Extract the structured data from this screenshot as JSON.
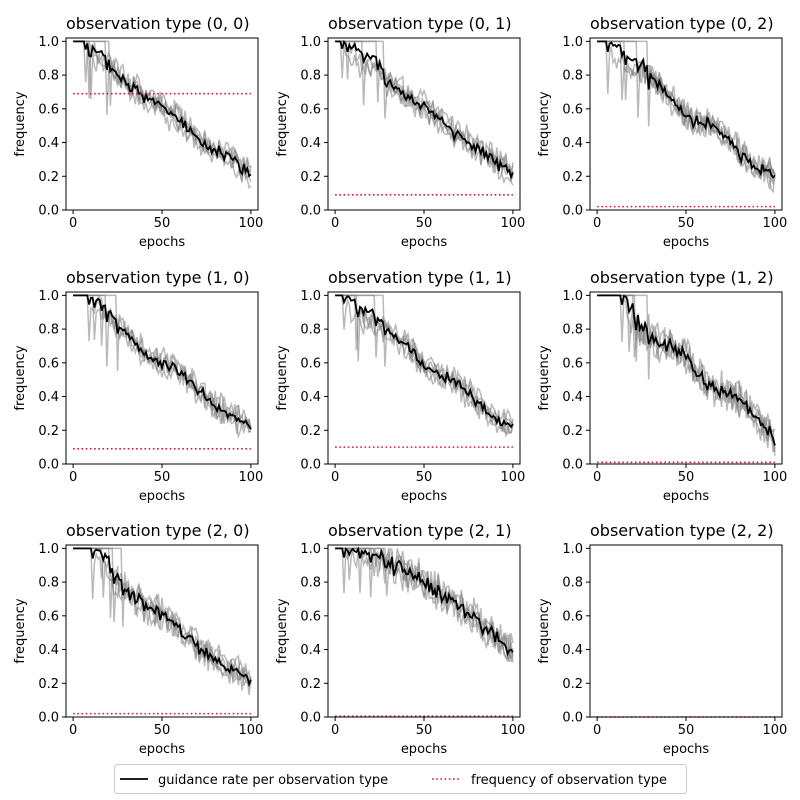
{
  "chart_data": {
    "type": "line",
    "xlabel": "epochs",
    "ylabel": "frequency",
    "xlim": [
      -4,
      104
    ],
    "ylim": [
      0,
      1.02
    ],
    "xticks": [
      "0",
      "50",
      "100"
    ],
    "yticks": [
      "0.0",
      "0.2",
      "0.4",
      "0.6",
      "0.8",
      "1.0"
    ],
    "legend": {
      "placement": "bottom-center",
      "entries": [
        "guidance rate per observation type",
        "frequency of observation type"
      ]
    },
    "colors": {
      "mean": "#000000",
      "runs": "#7f7f7f",
      "frequency": "#dc143c"
    },
    "panels": [
      {
        "title": "observation type (0, 0)",
        "empty": false,
        "frequency": 0.69,
        "start": 1.0,
        "end": 0.2,
        "shape": 1.0,
        "drop": 14,
        "noise": 0.05,
        "wave": 0.03,
        "seed": 1
      },
      {
        "title": "observation type (0, 1)",
        "empty": false,
        "frequency": 0.09,
        "start": 1.0,
        "end": 0.21,
        "shape": 1.0,
        "drop": 14,
        "noise": 0.05,
        "wave": 0.03,
        "seed": 2
      },
      {
        "title": "observation type (0, 2)",
        "empty": false,
        "frequency": 0.02,
        "start": 1.0,
        "end": 0.19,
        "shape": 1.0,
        "drop": 14,
        "noise": 0.06,
        "wave": 0.03,
        "seed": 3
      },
      {
        "title": "observation type (1, 0)",
        "empty": false,
        "frequency": 0.09,
        "start": 1.0,
        "end": 0.2,
        "shape": 1.0,
        "drop": 14,
        "noise": 0.05,
        "wave": 0.03,
        "seed": 4
      },
      {
        "title": "observation type (1, 1)",
        "empty": false,
        "frequency": 0.1,
        "start": 1.0,
        "end": 0.21,
        "shape": 1.0,
        "drop": 14,
        "noise": 0.05,
        "wave": 0.03,
        "seed": 5
      },
      {
        "title": "observation type (1, 2)",
        "empty": false,
        "frequency": 0.01,
        "start": 1.0,
        "end": 0.17,
        "shape": 1.1,
        "drop": 16,
        "noise": 0.08,
        "wave": 0.04,
        "seed": 6
      },
      {
        "title": "observation type (2, 0)",
        "empty": false,
        "frequency": 0.02,
        "start": 1.0,
        "end": 0.19,
        "shape": 1.0,
        "drop": 14,
        "noise": 0.07,
        "wave": 0.03,
        "seed": 7
      },
      {
        "title": "observation type (2, 1)",
        "empty": false,
        "frequency": 0.005,
        "start": 1.0,
        "end": 0.38,
        "shape": 1.6,
        "drop": 20,
        "noise": 0.08,
        "wave": 0.03,
        "seed": 8
      },
      {
        "title": "observation type (2, 2)",
        "empty": true,
        "frequency": 0.0,
        "start": null,
        "end": null,
        "shape": 1.0,
        "drop": 14,
        "noise": 0,
        "wave": 0,
        "seed": 9
      }
    ]
  }
}
